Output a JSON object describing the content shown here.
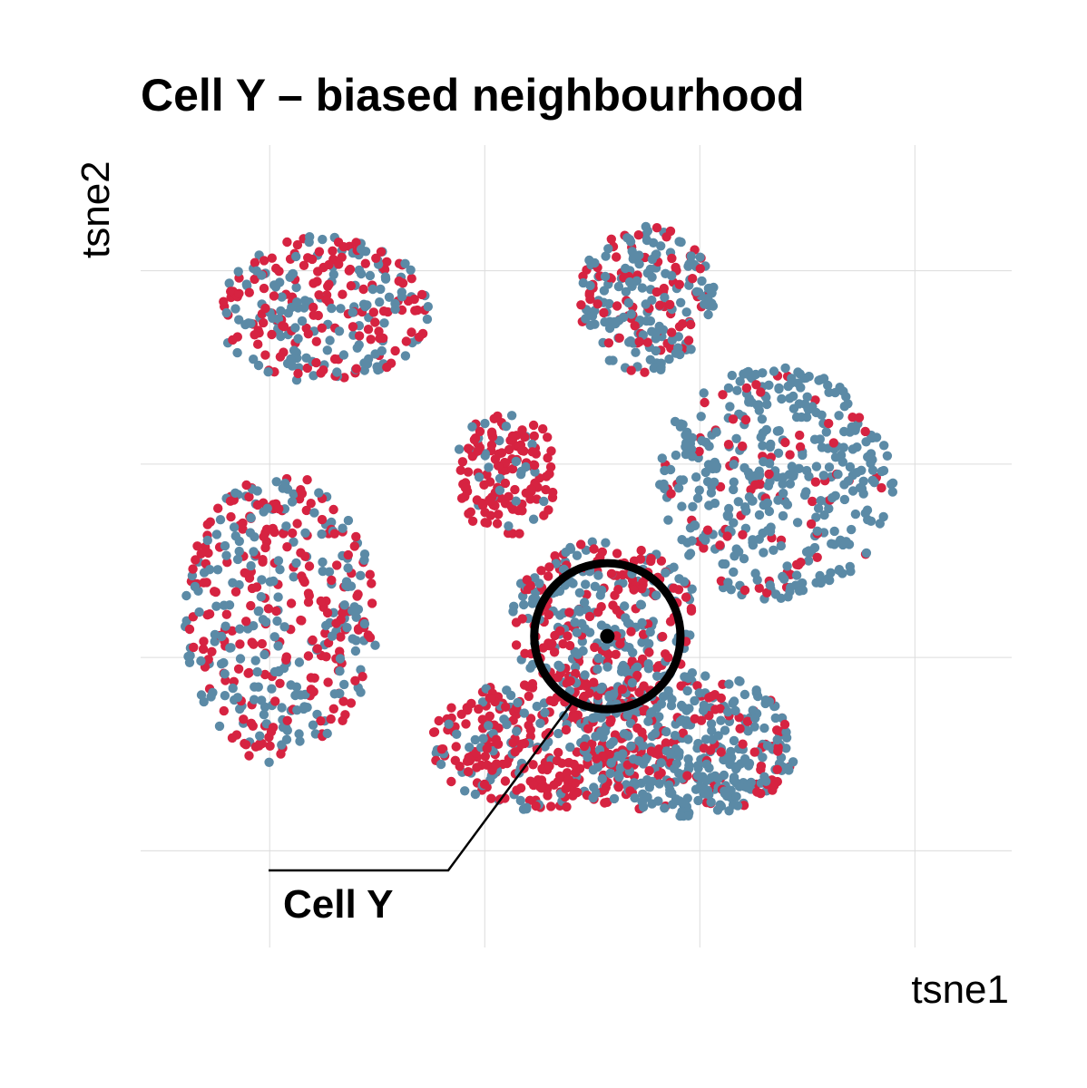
{
  "chart_data": {
    "type": "scatter",
    "title": "Cell Y – biased neighbourhood",
    "xlabel": "tsne1",
    "ylabel": "tsne2",
    "xlim": [
      -0.1,
      3.95
    ],
    "ylim": [
      -0.5,
      3.65
    ],
    "grid": true,
    "legend": "none",
    "series_colors": [
      "#d62341",
      "#5b8aa6"
    ],
    "highlight": {
      "label": "Cell Y",
      "x": 2.07,
      "y": 1.11,
      "radius": 0.34,
      "color": "#000000"
    },
    "regions": [
      {
        "cx": 0.55,
        "cy": 1.2,
        "rx": 0.45,
        "ry": 0.75,
        "n": 420,
        "red": 0.48
      },
      {
        "cx": 0.75,
        "cy": 2.8,
        "rx": 0.5,
        "ry": 0.38,
        "n": 280,
        "red": 0.5
      },
      {
        "cx": 1.6,
        "cy": 1.95,
        "rx": 0.25,
        "ry": 0.32,
        "n": 150,
        "red": 0.82
      },
      {
        "cx": 2.85,
        "cy": 1.9,
        "rx": 0.55,
        "ry": 0.6,
        "n": 420,
        "red": 0.2
      },
      {
        "cx": 2.25,
        "cy": 2.85,
        "rx": 0.32,
        "ry": 0.38,
        "n": 230,
        "red": 0.35
      },
      {
        "cx": 1.8,
        "cy": 0.55,
        "rx": 0.55,
        "ry": 0.35,
        "n": 380,
        "red": 0.68
      },
      {
        "cx": 2.45,
        "cy": 0.55,
        "rx": 0.5,
        "ry": 0.38,
        "n": 380,
        "red": 0.22
      },
      {
        "cx": 2.05,
        "cy": 1.2,
        "rx": 0.45,
        "ry": 0.4,
        "n": 320,
        "red": 0.5
      }
    ]
  }
}
